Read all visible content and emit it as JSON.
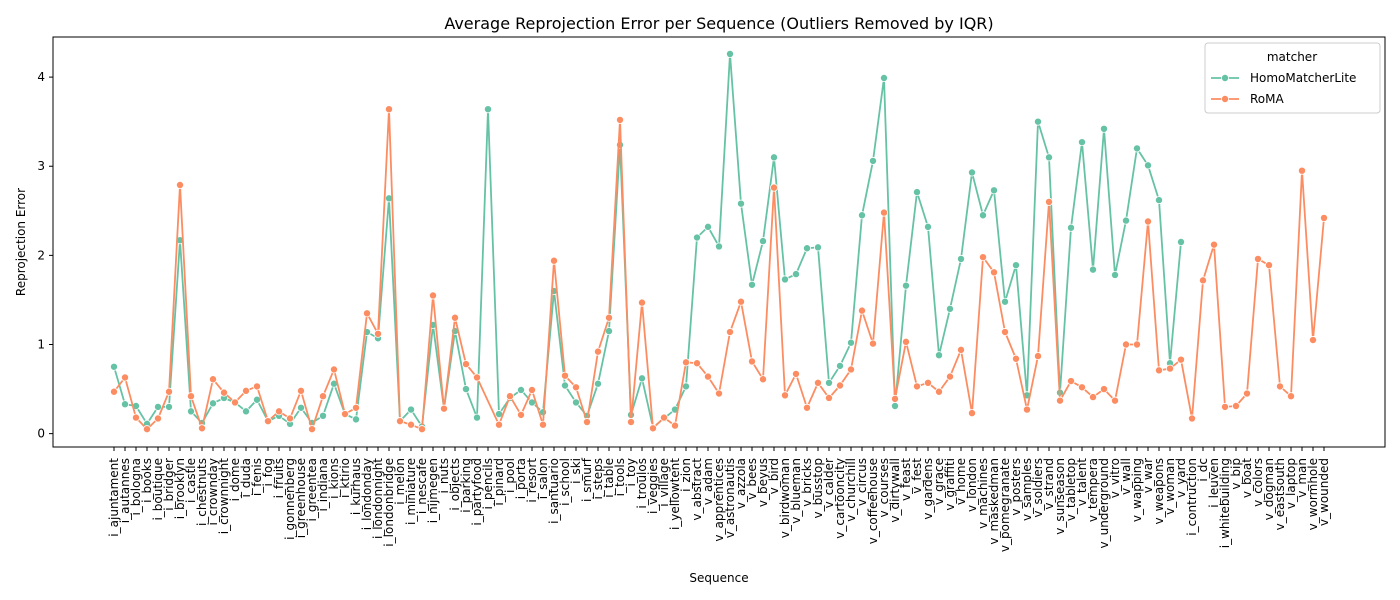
{
  "chart_data": {
    "type": "line",
    "title": "Average Reprojection Error per Sequence (Outliers Removed by IQR)",
    "xlabel": "Sequence",
    "ylabel": "Reprojection Error",
    "ylim": [
      -0.15,
      4.45
    ],
    "yticks": [
      0,
      1,
      2,
      3,
      4
    ],
    "legend": {
      "title": "matcher",
      "placement": "top-right"
    },
    "categories": [
      "i_ajuntament",
      "i_autannes",
      "i_bologna",
      "i_books",
      "i_boutique",
      "i_bridger",
      "i_brooklyn",
      "i_castle",
      "i_chestnuts",
      "i_crownday",
      "i_crownnight",
      "i_dome",
      "i_duda",
      "i_fenis",
      "i_fog",
      "i_fruits",
      "i_gonnenberg",
      "i_greenhouse",
      "i_greentea",
      "i_indiana",
      "i_kions",
      "i_ktirio",
      "i_kurhaus",
      "i_londonday",
      "i_londonnight",
      "i_londonbridge",
      "i_melon",
      "i_miniature",
      "i_nescafe",
      "i_nijmegen",
      "i_nuts",
      "i_objects",
      "i_parking",
      "i_partyfood",
      "i_pencils",
      "i_pinard",
      "i_pool",
      "i_porta",
      "i_resort",
      "i_salon",
      "i_santuario",
      "i_school",
      "i_ski",
      "i_smurf",
      "i_steps",
      "i_table",
      "i_tools",
      "i_toy",
      "i_troulos",
      "i_veggies",
      "i_village",
      "i_yellowtent",
      "i_zion",
      "v_abstract",
      "v_adam",
      "v_apprentices",
      "v_astronautis",
      "v_azzola",
      "v_bees",
      "v_beyus",
      "v_bird",
      "v_birdwoman",
      "v_blueman",
      "v_bricks",
      "v_busstop",
      "v_calder",
      "v_cartooncity",
      "v_churchill",
      "v_circus",
      "v_coffeehouse",
      "v_courses",
      "v_dirtywall",
      "v_feast",
      "v_fest",
      "v_gardens",
      "v_grace",
      "v_graffiti",
      "v_home",
      "v_london",
      "v_machines",
      "v_maskedman",
      "v_pomegranate",
      "v_posters",
      "v_samples",
      "v_soldiers",
      "v_strand",
      "v_sunseason",
      "v_tabletop",
      "v_talent",
      "v_tempera",
      "v_underground",
      "v_vitro",
      "v_wall",
      "v_wapping",
      "v_war",
      "v_weapons",
      "v_woman",
      "v_yard",
      "i_contruction",
      "i_dc",
      "i_leuven",
      "i_whitebuilding",
      "v_bip",
      "v_boat",
      "v_colors",
      "v_dogman",
      "v_eastsouth",
      "v_laptop",
      "v_man",
      "v_wormhole",
      "v_wounded"
    ],
    "series": [
      {
        "name": "HomoMatcherLite",
        "color": "#66c2a5",
        "values": [
          0.75,
          0.33,
          0.31,
          0.11,
          0.3,
          0.3,
          2.17,
          0.25,
          0.12,
          0.34,
          0.4,
          0.35,
          0.25,
          0.38,
          0.14,
          0.2,
          0.11,
          0.29,
          0.12,
          0.2,
          0.56,
          0.22,
          0.16,
          1.14,
          1.07,
          2.64,
          0.14,
          0.27,
          0.08,
          1.22,
          0.28,
          1.15,
          0.5,
          0.18,
          3.64,
          0.22,
          0.4,
          0.49,
          0.35,
          0.24,
          1.6,
          0.54,
          0.35,
          0.2,
          0.56,
          1.15,
          3.24,
          0.21,
          0.62,
          0.07,
          0.17,
          0.27,
          0.53,
          2.2,
          2.32,
          2.1,
          4.26,
          2.58,
          1.67,
          2.16,
          3.1,
          1.73,
          1.79,
          2.08,
          2.09,
          0.57,
          0.76,
          1.02,
          2.45,
          3.06,
          3.99,
          0.31,
          1.66,
          2.71,
          2.32,
          0.88,
          1.4,
          1.96,
          2.93,
          2.45,
          2.73,
          1.48,
          1.89,
          0.43,
          3.5,
          3.1,
          0.46,
          2.31,
          3.27,
          1.84,
          3.42,
          1.78,
          2.39,
          3.2,
          3.01,
          2.62,
          0.79,
          2.15,
          null,
          null,
          null,
          null,
          null,
          null,
          null,
          null,
          null,
          null,
          null,
          null,
          null
        ]
      },
      {
        "name": "RoMA",
        "color": "#fc8d62",
        "values": [
          0.47,
          0.63,
          0.18,
          0.05,
          0.17,
          0.47,
          2.79,
          0.42,
          0.06,
          0.61,
          0.46,
          0.35,
          0.48,
          0.53,
          0.14,
          0.25,
          0.17,
          0.48,
          0.05,
          0.42,
          0.72,
          0.22,
          0.29,
          1.35,
          1.12,
          3.64,
          0.14,
          0.1,
          0.05,
          1.55,
          0.28,
          1.3,
          0.78,
          0.63,
          null,
          0.1,
          0.42,
          0.21,
          0.49,
          0.1,
          1.94,
          0.65,
          0.52,
          0.13,
          0.92,
          1.3,
          3.52,
          0.13,
          1.47,
          0.06,
          0.18,
          0.09,
          0.8,
          0.79,
          0.64,
          0.45,
          1.14,
          1.48,
          0.81,
          0.61,
          2.76,
          0.43,
          0.67,
          0.29,
          0.57,
          0.4,
          0.54,
          0.72,
          1.38,
          1.01,
          2.48,
          0.39,
          1.03,
          0.53,
          0.57,
          0.47,
          0.64,
          0.94,
          0.23,
          1.98,
          1.81,
          1.14,
          0.84,
          0.27,
          0.87,
          2.6,
          0.37,
          0.59,
          0.52,
          0.41,
          0.5,
          0.37,
          1.0,
          1.0,
          2.38,
          0.71,
          0.73,
          0.83,
          0.17,
          1.72,
          2.12,
          0.3,
          0.31,
          0.45,
          1.96,
          1.89,
          0.53,
          0.42,
          2.95,
          1.05,
          2.42
        ]
      }
    ]
  }
}
